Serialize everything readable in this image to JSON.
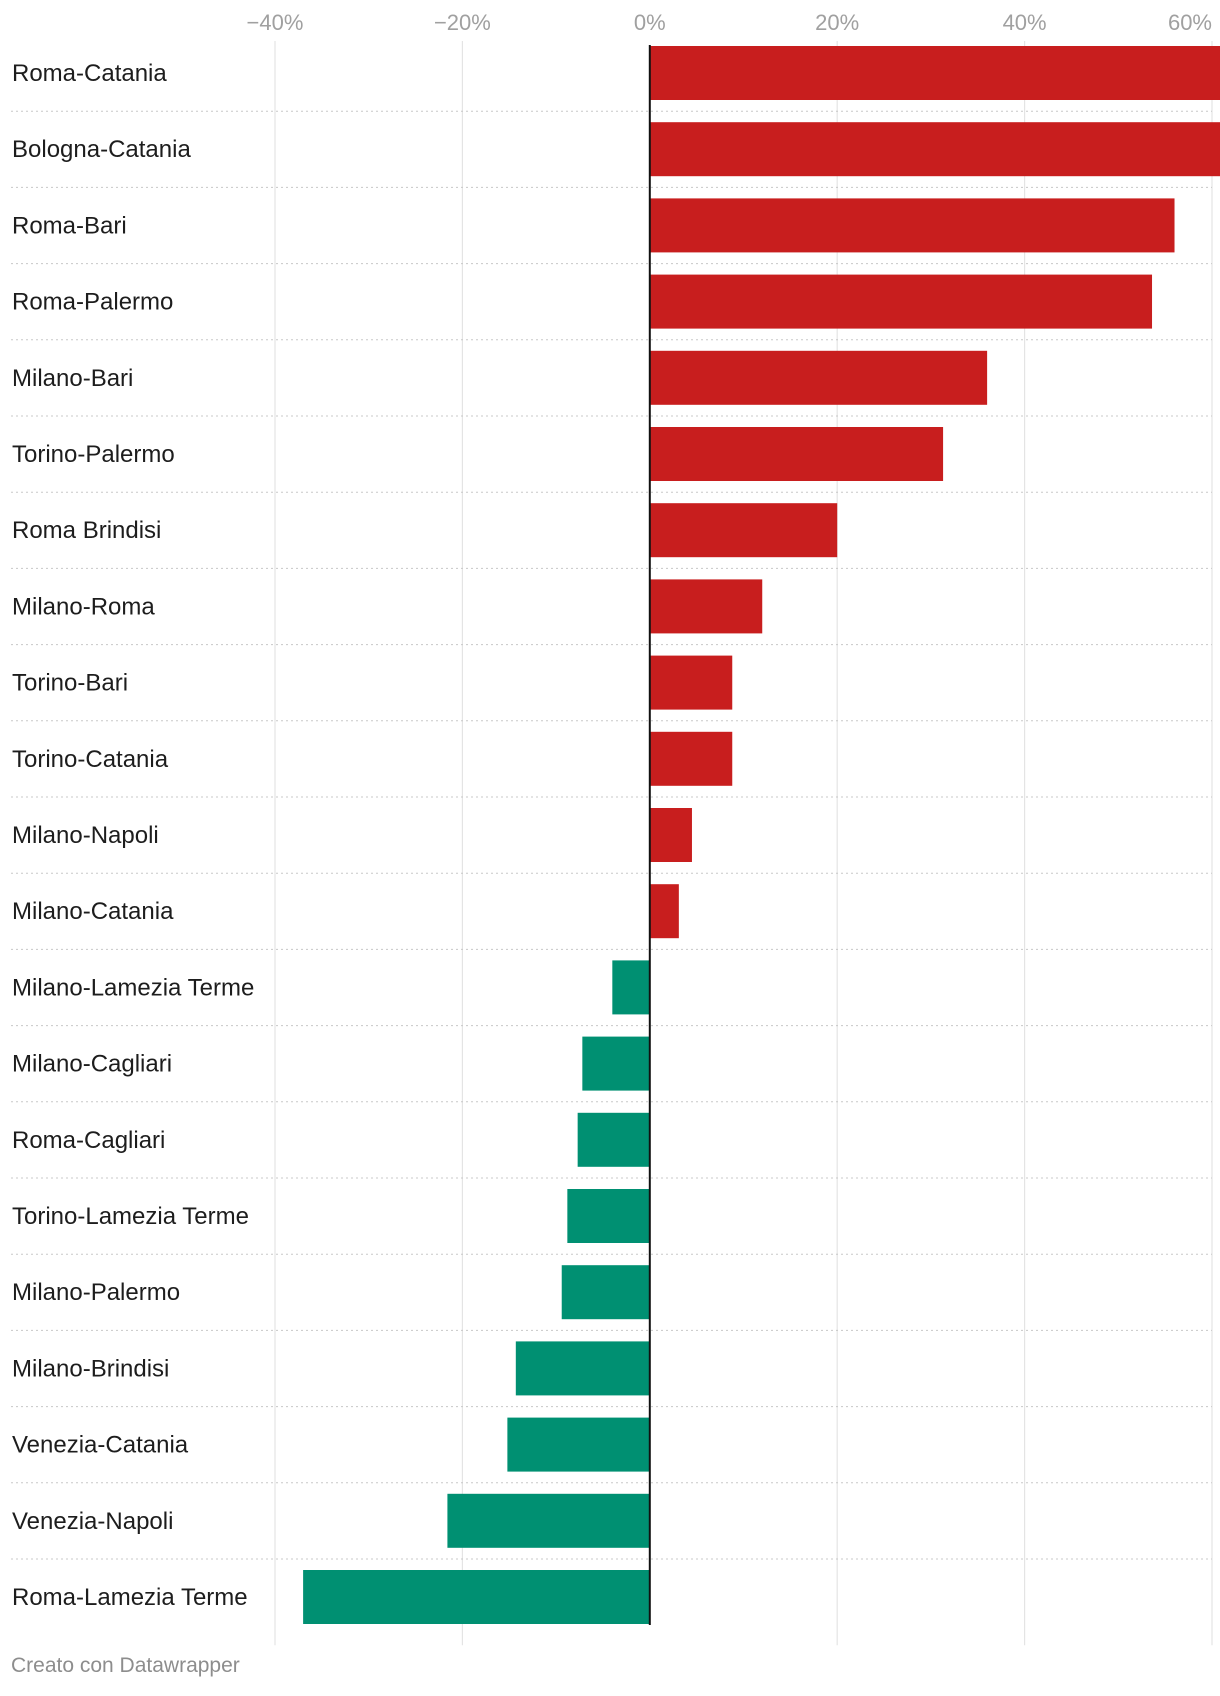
{
  "chart_data": {
    "type": "bar",
    "orientation": "horizontal",
    "title": "",
    "xlabel": "",
    "ylabel": "",
    "xlim": [
      -40,
      60
    ],
    "x_ticks": [
      -40,
      -20,
      0,
      20,
      40,
      60
    ],
    "x_tick_labels": [
      "−40%",
      "−20%",
      "0%",
      "20%",
      "40%",
      "60%"
    ],
    "grid": true,
    "colors": {
      "positive": "#c81e1e",
      "negative": "#009072"
    },
    "categories": [
      "Roma-Catania",
      "Bologna-Catania",
      "Roma-Bari",
      "Roma-Palermo",
      "Milano-Bari",
      "Torino-Palermo",
      "Roma Brindisi",
      "Milano-Roma",
      "Torino-Bari",
      "Torino-Catania",
      "Milano-Napoli",
      "Milano-Catania",
      "Milano-Lamezia Terme",
      "Milano-Cagliari",
      "Roma-Cagliari",
      "Torino-Lamezia Terme",
      "Milano-Palermo",
      "Milano-Brindisi",
      "Venezia-Catania",
      "Venezia-Napoli",
      "Roma-Lamezia Terme"
    ],
    "values": [
      61,
      61,
      56,
      53.6,
      36,
      31.3,
      20,
      12,
      8.8,
      8.8,
      4.5,
      3.1,
      -4,
      -7.2,
      -7.7,
      -8.8,
      -9.4,
      -14.3,
      -15.2,
      -21.6,
      -37
    ]
  },
  "footer": {
    "credit": "Creato con Datawrapper"
  }
}
